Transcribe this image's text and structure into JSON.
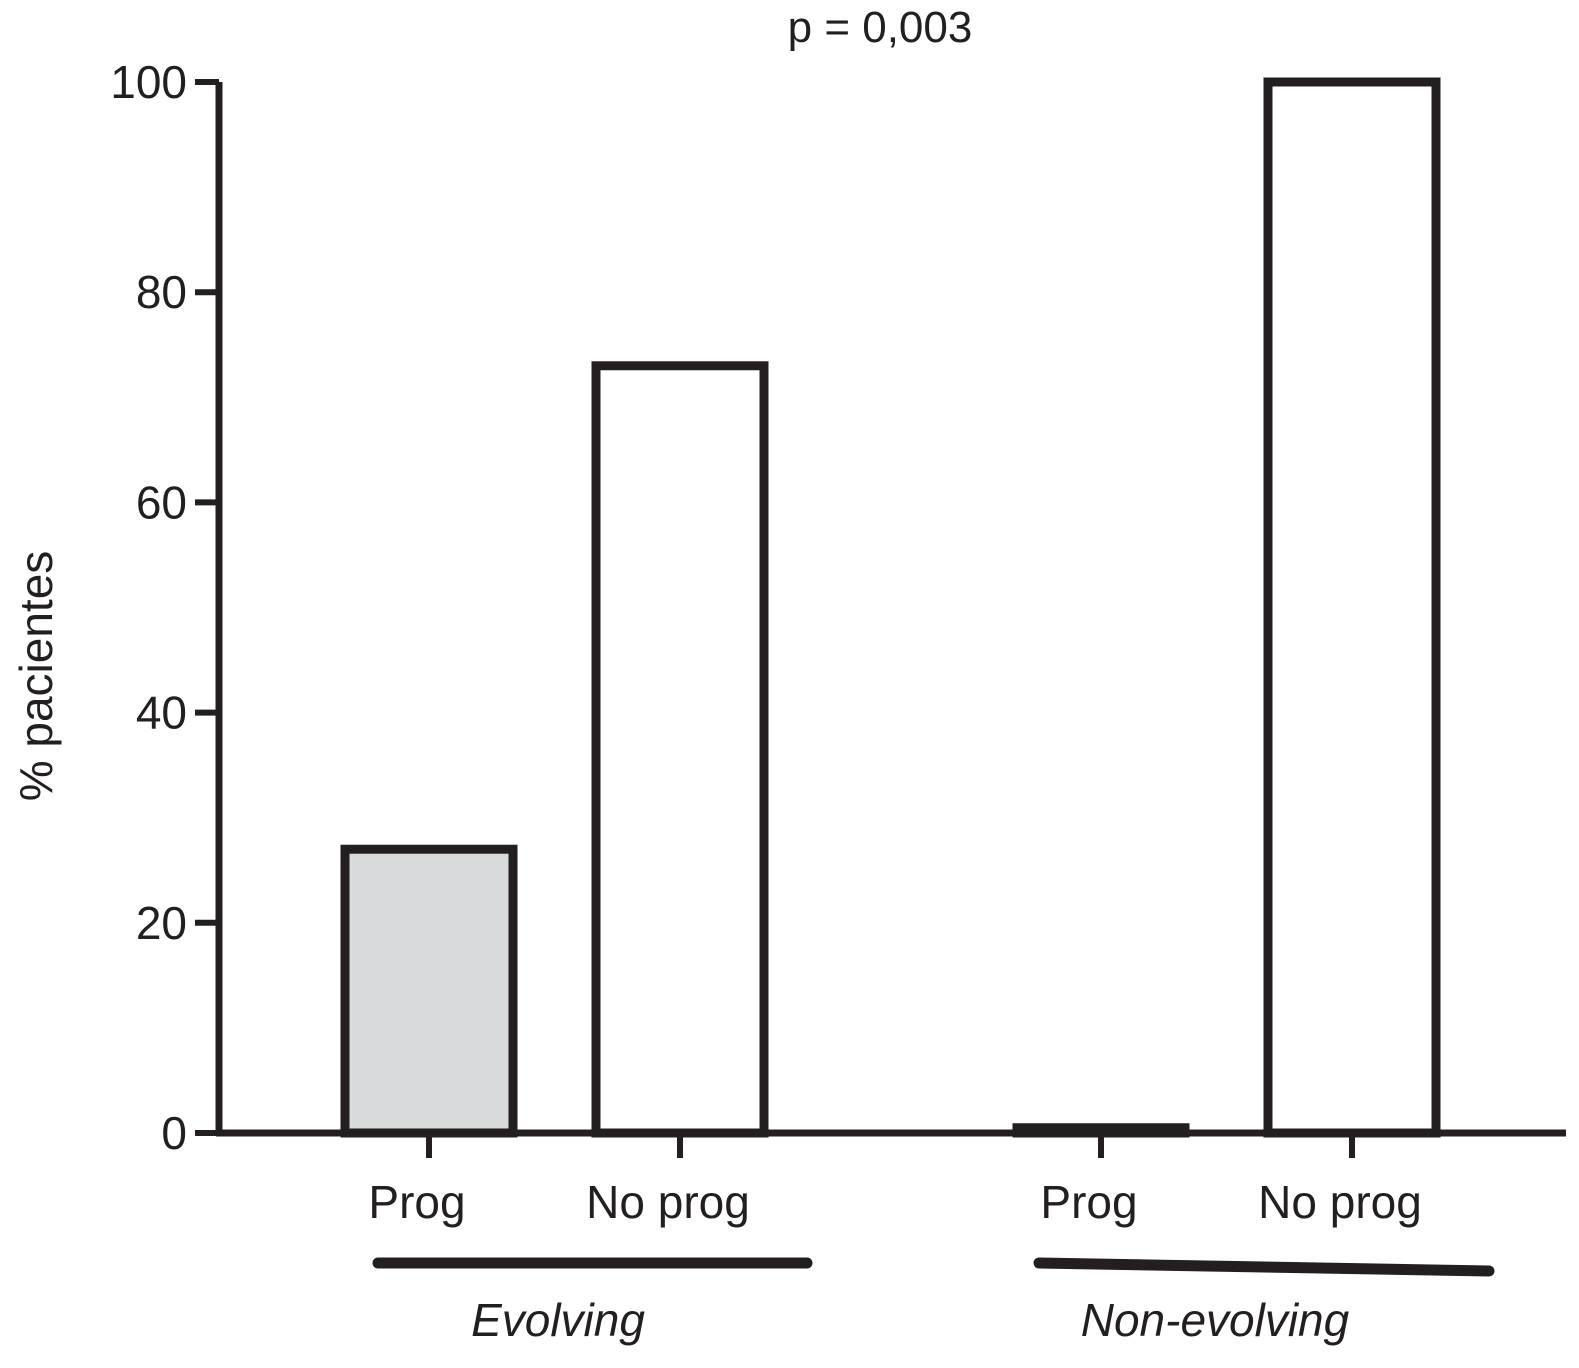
{
  "chart_data": {
    "type": "bar",
    "title": "p = 0,003",
    "ylabel": "% pacientes",
    "xlabel": "",
    "ylim": [
      0,
      100
    ],
    "yticks": [
      0,
      20,
      40,
      60,
      80,
      100
    ],
    "grid": false,
    "legend": "none",
    "categories": [
      "Prog",
      "No prog",
      "Prog",
      "No prog"
    ],
    "values": [
      27,
      73,
      0.5,
      100
    ],
    "bar_fills": [
      "#d9dadb",
      "#ffffff",
      "#ffffff",
      "#ffffff"
    ],
    "groups": [
      {
        "label": "Evolving",
        "categories": [
          0,
          1
        ]
      },
      {
        "label": "Non-evolving",
        "categories": [
          2,
          3
        ]
      }
    ],
    "colors": {
      "stroke": "#231f20",
      "prog_fill": "#d9dadb"
    }
  }
}
